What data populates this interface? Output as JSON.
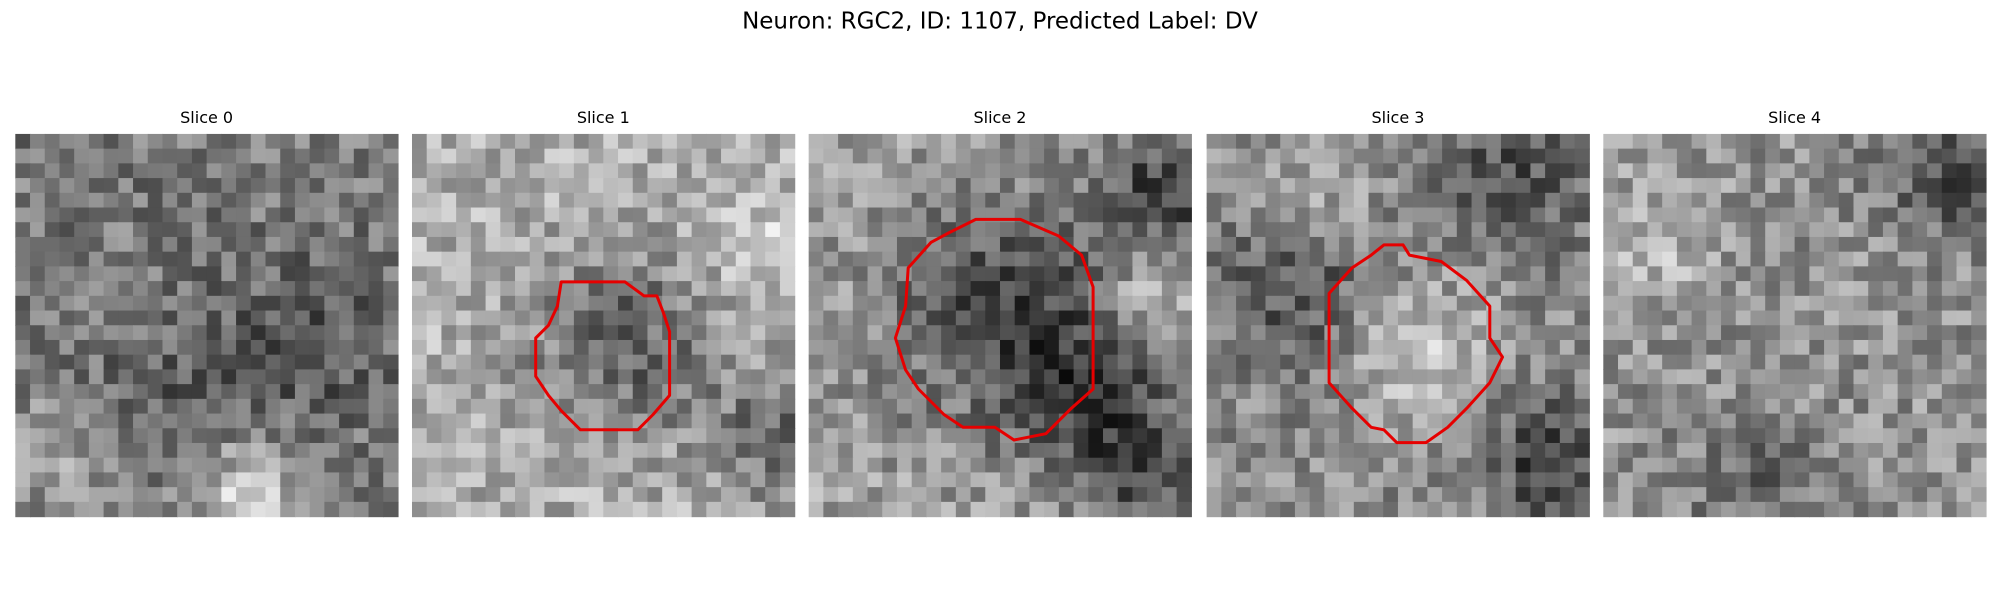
{
  "title": "Neuron: RGC2, ID: 1107, Predicted Label: DV",
  "panels": [
    {
      "label": "Slice 0"
    },
    {
      "label": "Slice 1"
    },
    {
      "label": "Slice 2"
    },
    {
      "label": "Slice 3"
    },
    {
      "label": "Slice 4"
    }
  ]
}
